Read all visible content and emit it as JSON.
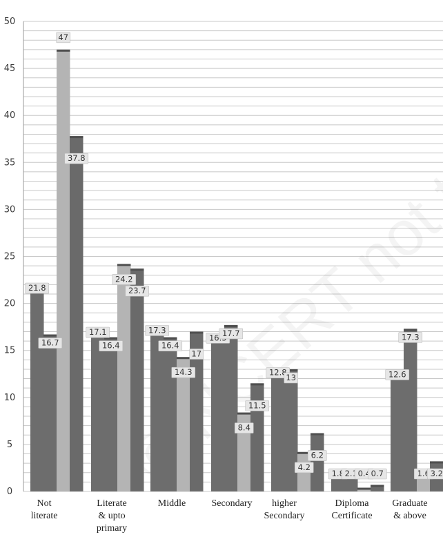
{
  "chart_data": {
    "type": "bar",
    "title": "",
    "xlabel": "",
    "ylabel": "",
    "ylim": [
      0,
      50
    ],
    "yticks": [
      0,
      5,
      10,
      15,
      20,
      25,
      30,
      35,
      40,
      45,
      50
    ],
    "categories": [
      [
        "Not",
        "literate"
      ],
      [
        "Literate",
        "& upto",
        "primary"
      ],
      [
        "Middle"
      ],
      [
        "Secondary"
      ],
      [
        "higher",
        "Secondary"
      ],
      [
        "Diploma",
        "Certificate"
      ],
      [
        "Graduate",
        "& above"
      ]
    ],
    "series": [
      {
        "values": [
          21.8,
          17.1,
          17.3,
          16.5,
          12.8,
          1.8,
          12.6
        ],
        "color": "#6d6d6d"
      },
      {
        "values": [
          16.7,
          16.4,
          16.4,
          17.7,
          13.0,
          2.1,
          17.3
        ],
        "color": "#6d6d6d"
      },
      {
        "values": [
          47.0,
          24.2,
          14.3,
          8.4,
          4.2,
          0.4,
          1.6
        ],
        "color": "#b4b4b4"
      },
      {
        "values": [
          37.8,
          23.7,
          17.0,
          11.5,
          6.2,
          0.7,
          3.2
        ],
        "color": "#6a6a6a"
      }
    ],
    "data_labels": [
      [
        "21.8",
        "16.7",
        "47",
        "37.8"
      ],
      [
        "17.1",
        "16.4",
        "24.2",
        "23.7"
      ],
      [
        "17.3",
        "16.4",
        "14.3",
        "17"
      ],
      [
        "16.5",
        "17.7",
        "8.4",
        "11.5"
      ],
      [
        "12.8",
        "13",
        "4.2",
        "6.2"
      ],
      [
        "1.8",
        "2.1",
        "0.4",
        "0.7"
      ],
      [
        "12.6",
        "17.3",
        "1.6",
        "3.2"
      ]
    ],
    "grid": true,
    "legend": "none"
  },
  "watermark": "© NCERT not to be republished"
}
